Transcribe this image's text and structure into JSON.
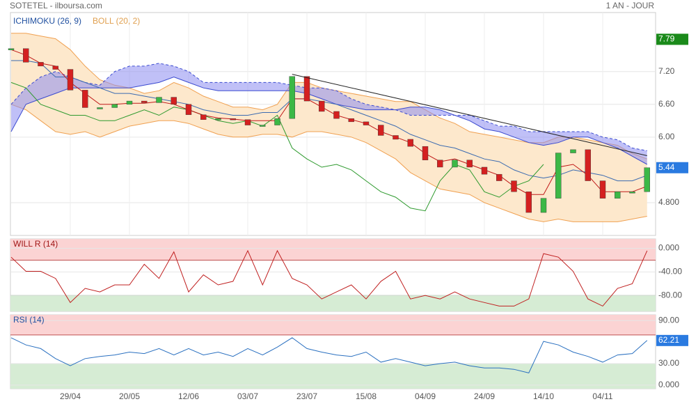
{
  "header": {
    "title": "SOTETEL - ilboursa.com",
    "period": "1 AN - JOUR"
  },
  "chart_data": [
    {
      "type": "candlestick",
      "values": [
        7.62,
        7.37,
        7.3,
        7.24,
        6.86,
        6.54,
        6.54,
        6.6,
        6.66,
        6.63,
        6.73,
        6.6,
        6.41,
        6.32,
        6.34,
        6.32,
        6.22,
        6.22,
        6.34,
        7.11,
        6.66,
        6.47,
        6.34,
        6.28,
        6.22,
        6.03,
        5.96,
        5.83,
        5.58,
        5.45,
        5.58,
        5.45,
        5.32,
        5.2,
        5.0,
        4.62,
        4.88,
        5.71,
        5.77,
        5.2,
        4.88,
        5.0,
        5.0,
        5.44
      ],
      "up_color": "#3cb846",
      "down_color": "#d42020",
      "ylim": [
        4.2,
        8.28
      ],
      "yticks": [
        {
          "value": 4.8,
          "label": "4.800"
        },
        {
          "value": 6.0,
          "label": "6.00"
        },
        {
          "value": 6.6,
          "label": "6.60"
        },
        {
          "value": 7.2,
          "label": "7.20"
        }
      ],
      "last_price": 5.44,
      "high_price": 7.79,
      "ichimoku": {
        "label": "ICHIMOKU (26, 9)",
        "label_color": "#2050a0",
        "tenkan": [
          7.6,
          7.5,
          7.35,
          7.3,
          7.0,
          6.8,
          6.6,
          6.6,
          6.62,
          6.62,
          6.65,
          6.6,
          6.5,
          6.4,
          6.35,
          6.33,
          6.3,
          6.3,
          6.3,
          6.7,
          6.7,
          6.55,
          6.4,
          6.32,
          6.25,
          6.1,
          6.0,
          5.9,
          5.7,
          5.55,
          5.6,
          5.5,
          5.4,
          5.3,
          5.1,
          4.95,
          4.95,
          5.45,
          5.5,
          5.3,
          5.0,
          5.0,
          5.0,
          5.1
        ],
        "tenkan_color": "#c01818",
        "kijun": [
          7.4,
          7.4,
          7.35,
          7.1,
          7.1,
          7.0,
          6.9,
          6.8,
          6.8,
          6.75,
          6.7,
          6.65,
          6.6,
          6.5,
          6.45,
          6.4,
          6.4,
          6.45,
          6.45,
          6.7,
          6.7,
          6.65,
          6.6,
          6.5,
          6.4,
          6.3,
          6.2,
          6.05,
          5.95,
          5.85,
          5.8,
          5.7,
          5.6,
          5.55,
          5.4,
          5.3,
          5.25,
          5.3,
          5.4,
          5.35,
          5.3,
          5.2,
          5.2,
          5.3
        ],
        "kijun_color": "#3a6ab0",
        "chikou": [
          7.0,
          6.9,
          6.6,
          6.5,
          6.4,
          6.4,
          6.3,
          6.3,
          6.4,
          6.5,
          6.4,
          6.55,
          6.5,
          6.4,
          6.3,
          6.25,
          6.3,
          6.2,
          6.4,
          5.8,
          5.6,
          5.45,
          5.5,
          5.4,
          5.2,
          5.0,
          4.9,
          4.7,
          4.65,
          5.2,
          5.5,
          5.4,
          5.0,
          4.9,
          5.1,
          5.2,
          5.5,
          null,
          null,
          null,
          null,
          null,
          null,
          null
        ],
        "chikou_color": "#2e9a2e",
        "span_a": [
          6.1,
          6.6,
          6.7,
          6.8,
          6.9,
          6.9,
          6.9,
          6.9,
          6.9,
          6.95,
          7.0,
          7.1,
          7.0,
          6.9,
          6.85,
          6.85,
          6.85,
          6.85,
          6.85,
          6.85,
          6.8,
          6.7,
          6.6,
          6.55,
          6.5,
          6.5,
          6.5,
          6.55,
          6.55,
          6.5,
          6.4,
          6.3,
          6.15,
          6.1,
          6.0,
          5.9,
          5.85,
          5.9,
          6.0,
          6.0,
          5.9,
          5.8,
          5.65,
          5.5
        ],
        "span_b": [
          6.6,
          6.9,
          7.1,
          7.2,
          7.1,
          7.0,
          6.95,
          7.2,
          7.3,
          7.3,
          7.35,
          7.3,
          7.2,
          7.0,
          7.0,
          7.0,
          7.0,
          7.0,
          7.0,
          6.95,
          6.9,
          6.9,
          6.85,
          6.7,
          6.6,
          6.55,
          6.5,
          6.4,
          6.4,
          6.4,
          6.4,
          6.4,
          6.3,
          6.2,
          6.2,
          6.1,
          6.1,
          6.1,
          6.1,
          6.1,
          6.0,
          5.95,
          5.8,
          5.75
        ],
        "cloud_color": "#8c8cf0"
      },
      "bollinger": {
        "label": "BOLL (20, 2)",
        "label_color": "#e0a050",
        "fill": "#fde8cc",
        "stroke": "#f0a050",
        "upper": [
          7.9,
          7.9,
          7.85,
          7.8,
          7.6,
          7.3,
          7.05,
          6.95,
          6.9,
          6.8,
          6.85,
          7.0,
          6.9,
          6.75,
          6.65,
          6.55,
          6.55,
          6.5,
          6.6,
          7.0,
          7.0,
          6.9,
          6.85,
          6.8,
          6.75,
          6.7,
          6.65,
          6.65,
          6.5,
          6.35,
          6.25,
          6.1,
          6.05,
          6.0,
          5.95,
          5.9,
          5.9,
          6.0,
          6.0,
          5.95,
          5.9,
          5.85,
          5.7,
          5.6
        ],
        "lower": [
          6.6,
          6.5,
          6.3,
          6.1,
          6.05,
          6.1,
          6.0,
          6.1,
          6.2,
          6.25,
          6.3,
          6.3,
          6.25,
          6.15,
          6.05,
          6.0,
          6.0,
          6.05,
          6.05,
          6.0,
          6.1,
          6.1,
          6.05,
          6.0,
          5.9,
          5.75,
          5.6,
          5.35,
          5.2,
          5.05,
          5.0,
          4.95,
          4.8,
          4.7,
          4.6,
          4.5,
          4.45,
          4.5,
          4.45,
          4.45,
          4.45,
          4.45,
          4.5,
          4.55
        ]
      },
      "trendline": {
        "from_index": 19,
        "from": 7.15,
        "to_index": 43,
        "to": 5.66,
        "color": "#222"
      }
    },
    {
      "type": "line",
      "title": "WILL R (14)",
      "color": "#c02020",
      "title_color": "#a01818",
      "values": [
        -15,
        -39,
        -39,
        -51,
        -92,
        -68,
        -74,
        -62,
        -62,
        -27,
        -51,
        -6,
        -74,
        -45,
        -62,
        -56,
        -4,
        -62,
        -4,
        -51,
        -62,
        -86,
        -74,
        -62,
        -86,
        -56,
        -39,
        -86,
        -80,
        -86,
        -74,
        -86,
        -92,
        -98,
        -98,
        -86,
        -9,
        -15,
        -39,
        -86,
        -98,
        -68,
        -60,
        -4
      ],
      "ylim": [
        -107,
        16
      ],
      "yticks": [
        {
          "value": -80,
          "label": "-80.00"
        },
        {
          "value": -40,
          "label": "-40.00"
        },
        {
          "value": 0,
          "label": "0.000"
        }
      ],
      "zones": {
        "upper": -20,
        "lower": -80
      }
    },
    {
      "type": "line",
      "title": "RSI (14)",
      "color": "#2a70c0",
      "title_color": "#2050a0",
      "categories": [
        null,
        null,
        null,
        null,
        "29/04",
        null,
        null,
        null,
        "20/05",
        null,
        null,
        null,
        "12/06",
        null,
        null,
        null,
        "03/07",
        null,
        null,
        null,
        "23/07",
        null,
        null,
        null,
        "15/08",
        null,
        null,
        null,
        "04/09",
        null,
        null,
        null,
        "24/09",
        null,
        null,
        null,
        "14/10",
        null,
        null,
        null,
        "04/11",
        null,
        null,
        null
      ],
      "values": [
        66,
        56,
        51,
        37,
        27,
        37,
        40,
        42,
        46,
        44,
        51,
        42,
        51,
        42,
        46,
        40,
        51,
        42,
        53,
        66,
        51,
        46,
        42,
        40,
        46,
        32,
        37,
        32,
        27,
        30,
        32,
        27,
        24,
        24,
        22,
        17,
        61,
        56,
        46,
        40,
        32,
        42,
        44,
        62.21
      ],
      "ylim": [
        -5,
        98
      ],
      "yticks": [
        {
          "value": 0,
          "label": "0.000"
        },
        {
          "value": 30,
          "label": "30.00"
        },
        {
          "value": 90,
          "label": "90.00"
        }
      ],
      "zones": {
        "upper": 70,
        "lower": 30
      }
    }
  ]
}
